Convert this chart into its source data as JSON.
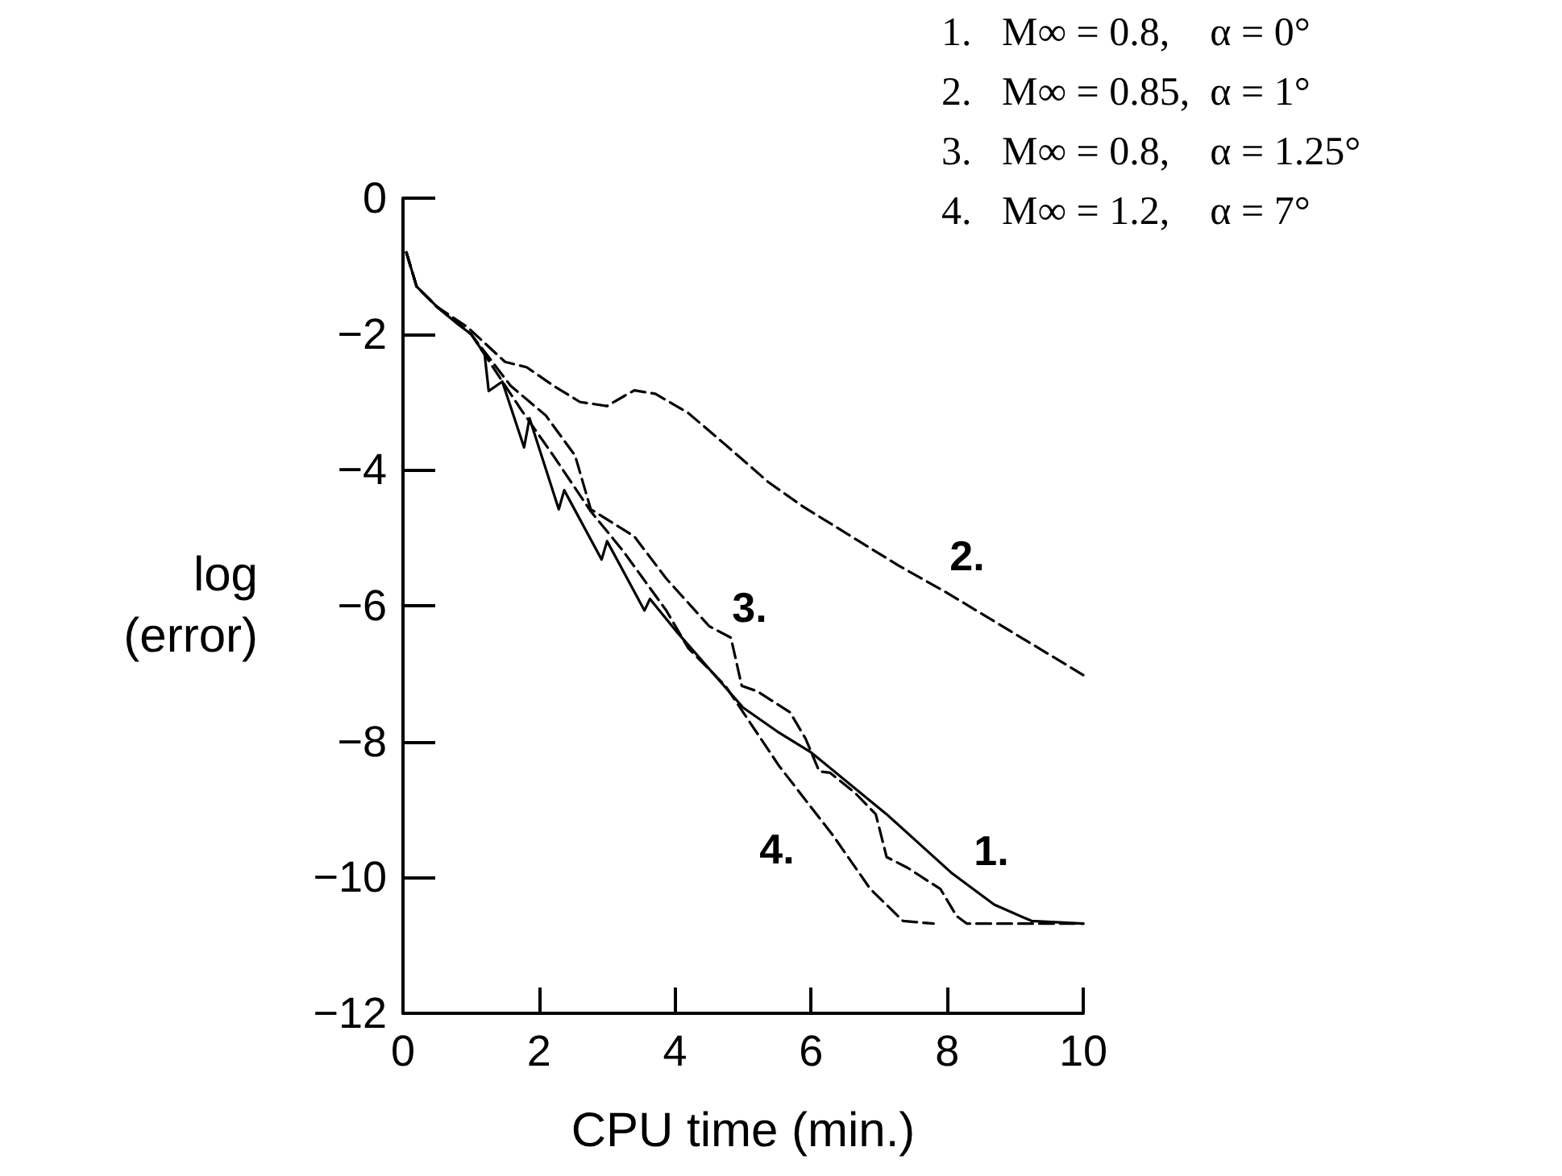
{
  "chart_data": {
    "type": "line",
    "xlabel": "CPU time (min.)",
    "ylabel": "log\n(error)",
    "xlim": [
      0,
      10
    ],
    "xticks": [
      0,
      2,
      4,
      6,
      8,
      10
    ],
    "ylim": [
      -12,
      0
    ],
    "yticks": [
      0,
      -2,
      -4,
      -6,
      -8,
      -10,
      -12
    ],
    "grid": false,
    "marker": "none",
    "series": [
      {
        "color": "#000000",
        "line_style": "solid",
        "x": [
          0.05,
          0.2,
          0.5,
          0.8,
          1.0,
          1.2,
          1.26,
          1.46,
          1.78,
          1.86,
          2.29,
          2.37,
          2.92,
          3.0,
          3.55,
          3.63,
          4.03,
          4.58,
          5.0,
          5.5,
          6.0,
          7.11,
          8.06,
          8.69,
          9.24,
          10.0
        ],
        "values": [
          -0.8,
          -1.3,
          -1.6,
          -1.85,
          -2.0,
          -2.3,
          -2.84,
          -2.7,
          -3.67,
          -3.24,
          -4.58,
          -4.3,
          -5.32,
          -5.05,
          -6.07,
          -5.9,
          -6.39,
          -7.02,
          -7.5,
          -7.85,
          -8.16,
          -9.07,
          -9.93,
          -10.4,
          -10.64,
          -10.68
        ]
      },
      {
        "color": "#000000",
        "line_style": "dashed",
        "x": [
          0.05,
          0.2,
          0.5,
          0.95,
          1.5,
          1.82,
          2.21,
          2.6,
          3.0,
          3.24,
          3.4,
          3.71,
          4.19,
          4.74,
          5.37,
          5.88,
          7.27,
          7.98,
          10.0
        ],
        "values": [
          -0.8,
          -1.3,
          -1.6,
          -1.9,
          -2.41,
          -2.49,
          -2.76,
          -3.0,
          -3.06,
          -2.92,
          -2.83,
          -2.88,
          -3.16,
          -3.63,
          -4.18,
          -4.54,
          -5.4,
          -5.8,
          -7.02
        ]
      },
      {
        "color": "#000000",
        "line_style": "dashed",
        "x": [
          0.05,
          0.2,
          0.5,
          1.0,
          1.58,
          2.1,
          2.53,
          2.76,
          3.4,
          3.87,
          4.5,
          4.82,
          4.98,
          5.21,
          5.69,
          5.92,
          6.12,
          6.28,
          6.64,
          6.95,
          7.11,
          7.42,
          7.9,
          8.14,
          8.29,
          10.0
        ],
        "values": [
          -0.8,
          -1.3,
          -1.6,
          -2.0,
          -2.76,
          -3.2,
          -3.79,
          -4.58,
          -4.98,
          -5.6,
          -6.3,
          -6.47,
          -7.18,
          -7.26,
          -7.57,
          -7.96,
          -8.44,
          -8.46,
          -8.75,
          -9.07,
          -9.7,
          -9.86,
          -10.17,
          -10.57,
          -10.68,
          -10.68
        ]
      },
      {
        "color": "#000000",
        "line_style": "dashed",
        "x": [
          0.05,
          0.2,
          0.5,
          1.0,
          1.74,
          2.21,
          2.76,
          3.24,
          3.87,
          4.19,
          4.74,
          5.53,
          6.32,
          6.87,
          7.35,
          7.8
        ],
        "values": [
          -0.8,
          -1.3,
          -1.6,
          -2.0,
          -3.12,
          -3.79,
          -4.61,
          -5.2,
          -6.07,
          -6.62,
          -7.18,
          -8.36,
          -9.38,
          -10.17,
          -10.64,
          -10.68
        ]
      }
    ],
    "annotations": [
      "1.   M∞ = 0.8,    α = 0°",
      "2.   M∞ = 0.85,  α = 1°",
      "3.   M∞ = 0.8,    α = 1.25°",
      "4.   M∞ = 1.2,    α = 7°",
      "1.",
      "2.",
      "3.",
      "4."
    ]
  }
}
